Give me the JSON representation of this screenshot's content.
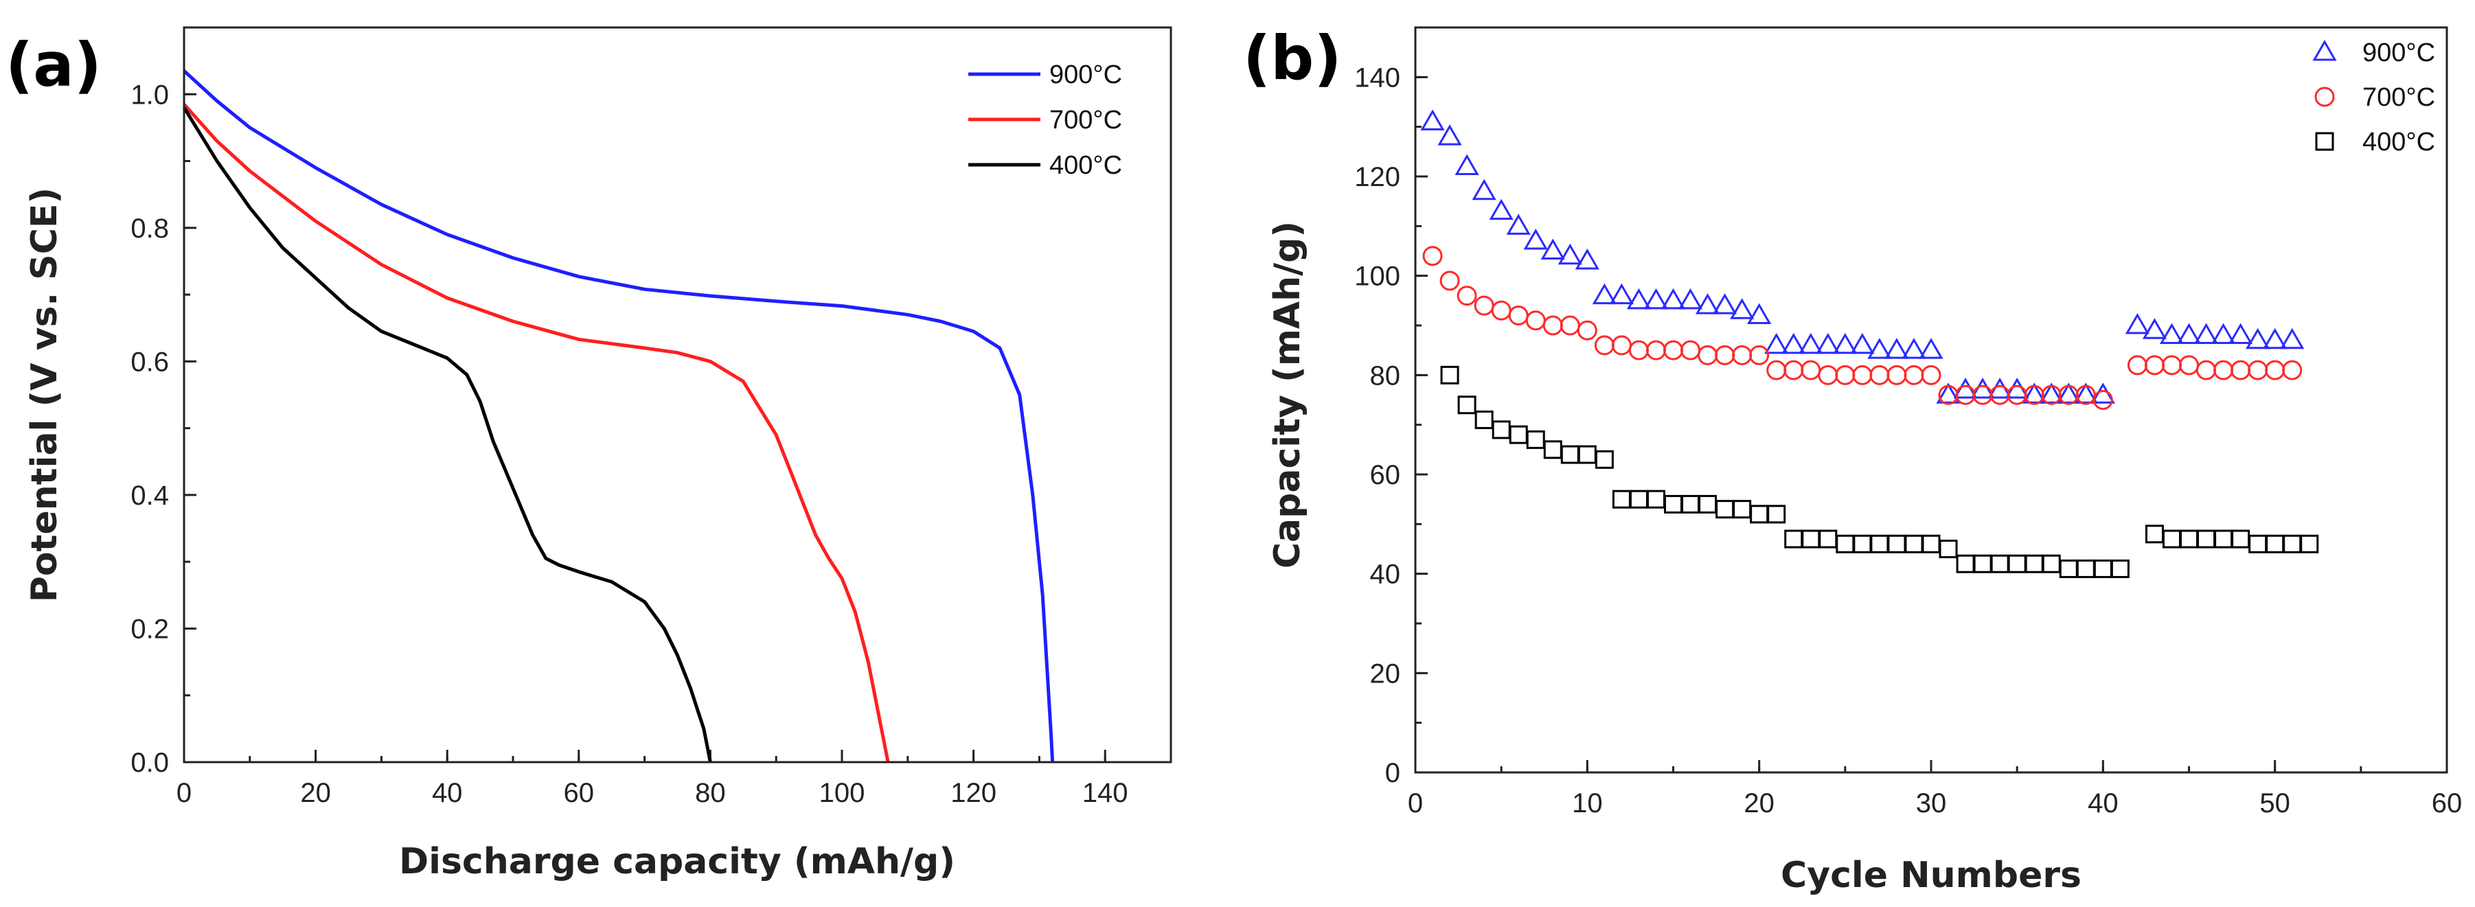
{
  "chart_data": [
    {
      "panel": "(a)",
      "type": "line",
      "xlabel": "Discharge capacity (mAh/g)",
      "ylabel": "Potential (V vs. SCE)",
      "xlim": [
        0,
        150
      ],
      "ylim": [
        0,
        1.1
      ],
      "xticks": [
        "0",
        "20",
        "40",
        "60",
        "80",
        "100",
        "120",
        "140"
      ],
      "yticks": [
        "0.0",
        "0.2",
        "0.4",
        "0.6",
        "0.8",
        "1.0"
      ],
      "legend_position": "top-right",
      "series": [
        {
          "name": "900°C",
          "color": "#1f1fff",
          "x": [
            0,
            5,
            10,
            20,
            30,
            40,
            50,
            60,
            70,
            80,
            90,
            100,
            110,
            115,
            120,
            124,
            127,
            129,
            130.5,
            131.3,
            131.8,
            132
          ],
          "y": [
            1.035,
            0.99,
            0.95,
            0.89,
            0.835,
            0.79,
            0.755,
            0.727,
            0.708,
            0.698,
            0.69,
            0.683,
            0.67,
            0.66,
            0.645,
            0.62,
            0.55,
            0.4,
            0.25,
            0.12,
            0.04,
            0.0
          ]
        },
        {
          "name": "700°C",
          "color": "#ff1f1f",
          "x": [
            0,
            5,
            10,
            20,
            30,
            40,
            50,
            60,
            70,
            75,
            80,
            85,
            90,
            92,
            94,
            96,
            98,
            100,
            102,
            104,
            105,
            106,
            106.5,
            107
          ],
          "y": [
            0.985,
            0.93,
            0.885,
            0.81,
            0.745,
            0.695,
            0.66,
            0.633,
            0.62,
            0.613,
            0.6,
            0.57,
            0.49,
            0.44,
            0.39,
            0.34,
            0.305,
            0.275,
            0.225,
            0.15,
            0.1,
            0.05,
            0.025,
            0.0
          ]
        },
        {
          "name": "400°C",
          "color": "#000000",
          "x": [
            0,
            5,
            10,
            15,
            20,
            25,
            30,
            35,
            40,
            43,
            45,
            47,
            50,
            53,
            55,
            57,
            60,
            65,
            70,
            73,
            75,
            77,
            78,
            79,
            79.5,
            80
          ],
          "y": [
            0.98,
            0.9,
            0.83,
            0.77,
            0.725,
            0.68,
            0.645,
            0.625,
            0.605,
            0.58,
            0.54,
            0.48,
            0.41,
            0.34,
            0.305,
            0.295,
            0.285,
            0.27,
            0.24,
            0.2,
            0.16,
            0.11,
            0.08,
            0.05,
            0.025,
            0.0
          ]
        }
      ]
    },
    {
      "panel": "(b)",
      "type": "scatter",
      "xlabel": "Cycle Numbers",
      "ylabel": "Capacity (mAh/g)",
      "xlim": [
        0,
        60
      ],
      "ylim": [
        0,
        150
      ],
      "xticks": [
        "0",
        "10",
        "20",
        "30",
        "40",
        "50",
        "60"
      ],
      "yticks": [
        "0",
        "20",
        "40",
        "60",
        "80",
        "100",
        "120",
        "140"
      ],
      "legend_position": "top-right",
      "series": [
        {
          "name": "900°C",
          "marker": "triangle",
          "color": "#2a2aff",
          "x": [
            1,
            2,
            3,
            4,
            5,
            6,
            7,
            8,
            9,
            10,
            11,
            12,
            13,
            14,
            15,
            16,
            17,
            18,
            19,
            20,
            21,
            22,
            23,
            24,
            25,
            26,
            27,
            28,
            29,
            30,
            31,
            32,
            33,
            34,
            35,
            36,
            37,
            38,
            39,
            40,
            42,
            43,
            44,
            45,
            46,
            47,
            48,
            49,
            50,
            51
          ],
          "y": [
            131,
            128,
            122,
            117,
            113,
            110,
            107,
            105,
            104,
            103,
            96,
            96,
            95,
            95,
            95,
            95,
            94,
            94,
            93,
            92,
            86,
            86,
            86,
            86,
            86,
            86,
            85,
            85,
            85,
            85,
            76,
            77,
            77,
            77,
            77,
            76,
            76,
            76,
            76,
            76,
            90,
            89,
            88,
            88,
            88,
            88,
            88,
            87,
            87,
            87
          ]
        },
        {
          "name": "700°C",
          "marker": "circle",
          "color": "#ff2a2a",
          "x": [
            1,
            2,
            3,
            4,
            5,
            6,
            7,
            8,
            9,
            10,
            11,
            12,
            13,
            14,
            15,
            16,
            17,
            18,
            19,
            20,
            21,
            22,
            23,
            24,
            25,
            26,
            27,
            28,
            29,
            30,
            31,
            32,
            33,
            34,
            35,
            36,
            37,
            38,
            39,
            40,
            42,
            43,
            44,
            45,
            46,
            47,
            48,
            49,
            50,
            51
          ],
          "y": [
            104,
            99,
            96,
            94,
            93,
            92,
            91,
            90,
            90,
            89,
            86,
            86,
            85,
            85,
            85,
            85,
            84,
            84,
            84,
            84,
            81,
            81,
            81,
            80,
            80,
            80,
            80,
            80,
            80,
            80,
            76,
            76,
            76,
            76,
            76,
            76,
            76,
            76,
            76,
            75,
            82,
            82,
            82,
            82,
            81,
            81,
            81,
            81,
            81,
            81
          ]
        },
        {
          "name": "400°C",
          "marker": "square",
          "color": "#000000",
          "x": [
            2,
            3,
            4,
            5,
            6,
            7,
            8,
            9,
            10,
            11,
            12,
            13,
            14,
            15,
            16,
            17,
            18,
            19,
            20,
            21,
            22,
            23,
            24,
            25,
            26,
            27,
            28,
            29,
            30,
            31,
            32,
            33,
            34,
            35,
            36,
            37,
            38,
            39,
            40,
            41,
            43,
            44,
            45,
            46,
            47,
            48,
            49,
            50,
            51,
            52
          ],
          "y": [
            80,
            74,
            71,
            69,
            68,
            67,
            65,
            64,
            64,
            63,
            55,
            55,
            55,
            54,
            54,
            54,
            53,
            53,
            52,
            52,
            47,
            47,
            47,
            46,
            46,
            46,
            46,
            46,
            46,
            45,
            42,
            42,
            42,
            42,
            42,
            42,
            41,
            41,
            41,
            41,
            48,
            47,
            47,
            47,
            47,
            47,
            46,
            46,
            46,
            46
          ]
        }
      ]
    }
  ]
}
